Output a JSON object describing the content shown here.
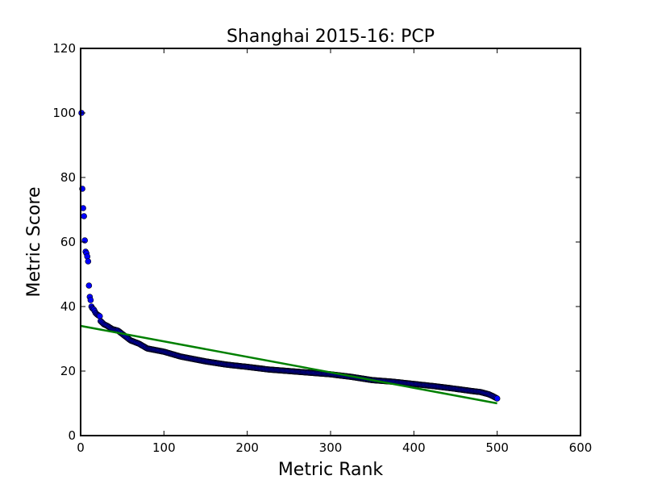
{
  "chart_data": {
    "type": "scatter",
    "title": "Shanghai 2015-16: PCP",
    "xlabel": "Metric Rank",
    "ylabel": "Metric Score",
    "xlim": [
      0,
      600
    ],
    "ylim": [
      0,
      120
    ],
    "xticks": [
      "0",
      "100",
      "200",
      "300",
      "400",
      "500",
      "600"
    ],
    "yticks": [
      "0",
      "20",
      "40",
      "60",
      "80",
      "100",
      "120"
    ],
    "grid": false,
    "colors": {
      "points": "#0000ff",
      "point_edge": "#000000",
      "fit_line": "#008000"
    },
    "series": [
      {
        "type": "scatter",
        "anchors": [
          [
            1,
            100
          ],
          [
            2,
            76.5
          ],
          [
            3,
            70.5
          ],
          [
            4,
            68
          ],
          [
            5,
            60.5
          ],
          [
            6,
            57
          ],
          [
            7,
            56.5
          ],
          [
            8,
            55.5
          ],
          [
            9,
            54
          ],
          [
            10,
            46.5
          ],
          [
            11,
            43
          ],
          [
            12,
            42
          ],
          [
            13,
            40
          ],
          [
            14,
            39.5
          ],
          [
            16,
            39
          ],
          [
            18,
            38
          ],
          [
            20,
            37.5
          ],
          [
            23,
            37
          ],
          [
            24,
            35.5
          ],
          [
            26,
            35
          ],
          [
            28,
            34.5
          ],
          [
            32,
            34
          ],
          [
            38,
            33
          ],
          [
            45,
            32.5
          ],
          [
            50,
            31.5
          ],
          [
            55,
            30.5
          ],
          [
            60,
            29.5
          ],
          [
            70,
            28.5
          ],
          [
            80,
            27
          ],
          [
            100,
            26
          ],
          [
            120,
            24.5
          ],
          [
            150,
            23
          ],
          [
            175,
            22
          ],
          [
            200,
            21.3
          ],
          [
            225,
            20.5
          ],
          [
            250,
            20
          ],
          [
            275,
            19.5
          ],
          [
            300,
            19
          ],
          [
            325,
            18.2
          ],
          [
            350,
            17.2
          ],
          [
            375,
            16.7
          ],
          [
            400,
            16
          ],
          [
            425,
            15.3
          ],
          [
            450,
            14.5
          ],
          [
            470,
            13.8
          ],
          [
            480,
            13.5
          ],
          [
            490,
            12.8
          ],
          [
            495,
            12.2
          ],
          [
            500,
            11.5
          ]
        ],
        "count": 500
      },
      {
        "type": "line",
        "x": [
          0,
          500
        ],
        "y": [
          34,
          10
        ]
      }
    ]
  }
}
